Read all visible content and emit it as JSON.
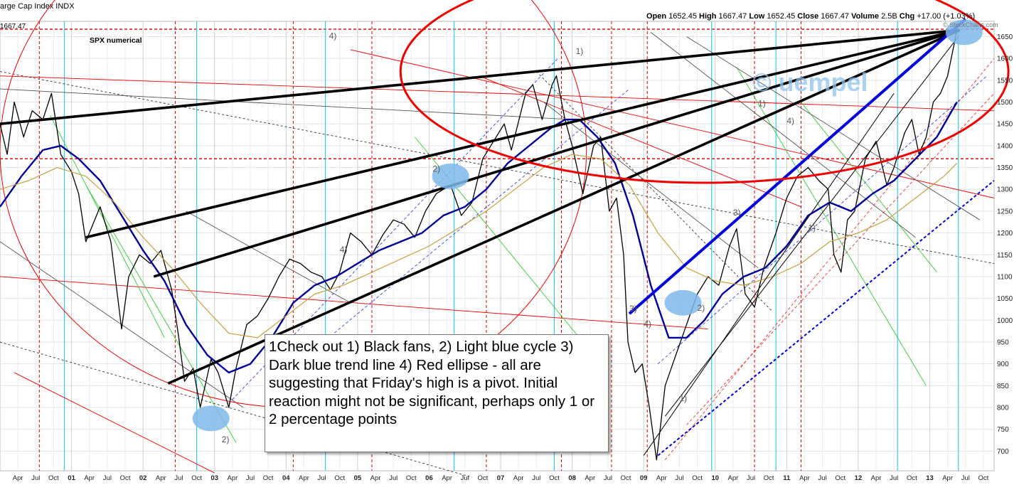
{
  "header": {
    "index_name": "arge Cap Index",
    "index_code": "INDX",
    "open_label": "Open",
    "open": "1652.45",
    "high_label": "High",
    "high": "1667.47",
    "low_label": "Low",
    "low": "1652.45",
    "close_label": "Close",
    "close": "1667.47",
    "volume_label": "Volume",
    "volume": "2.5B",
    "chg_label": "Chg",
    "chg": "+17.00 (+1.03%)",
    "watermark": "© StockCharts.com",
    "last_price_tag": "1667.47"
  },
  "labels": {
    "series_label": "SPX numerical",
    "author_watermark": "© uempel"
  },
  "annotation_text": "1Check out 1) Black fans, 2) Light blue cycle 3) Dark blue trend line 4) Red ellipse - all are suggesting that Friday's high is a pivot. Initial reaction might not be significant, perhaps only 1 or 2 percentage points",
  "colors": {
    "price": "#000000",
    "ma_long": "#000099",
    "ma_short": "#c8a040",
    "fan": "#000000",
    "trend": "#0000dd",
    "ellipse": "#ee0000",
    "cycle_line": "#33ccee",
    "cycle_blob": "#7fb8ea",
    "resistance": "#ee0000"
  },
  "chart_data": {
    "type": "line",
    "title": "",
    "x_range": [
      2000.0,
      2013.9
    ],
    "ylim": [
      655,
      1685
    ],
    "y_ticks": [
      700,
      750,
      800,
      850,
      900,
      950,
      1000,
      1050,
      1100,
      1150,
      1200,
      1250,
      1300,
      1350,
      1400,
      1450,
      1500,
      1550,
      1600,
      1650
    ],
    "x_ticks": [
      {
        "t": 2000.25,
        "label": "Apr"
      },
      {
        "t": 2000.5,
        "label": "Jul"
      },
      {
        "t": 2000.75,
        "label": "Oct"
      },
      {
        "t": 2001.0,
        "label": "01",
        "year": true
      },
      {
        "t": 2001.25,
        "label": "Apr"
      },
      {
        "t": 2001.5,
        "label": "Jul"
      },
      {
        "t": 2001.75,
        "label": "Oct"
      },
      {
        "t": 2002.0,
        "label": "02",
        "year": true
      },
      {
        "t": 2002.25,
        "label": "Apr"
      },
      {
        "t": 2002.5,
        "label": "Jul"
      },
      {
        "t": 2002.75,
        "label": "Oct"
      },
      {
        "t": 2003.0,
        "label": "03",
        "year": true
      },
      {
        "t": 2003.25,
        "label": "Apr"
      },
      {
        "t": 2003.5,
        "label": "Jul"
      },
      {
        "t": 2003.75,
        "label": "Oct"
      },
      {
        "t": 2004.0,
        "label": "04",
        "year": true
      },
      {
        "t": 2004.25,
        "label": "Apr"
      },
      {
        "t": 2004.5,
        "label": "Jul"
      },
      {
        "t": 2004.75,
        "label": "Oct"
      },
      {
        "t": 2005.0,
        "label": "05",
        "year": true
      },
      {
        "t": 2005.25,
        "label": "Apr"
      },
      {
        "t": 2005.5,
        "label": "Jul"
      },
      {
        "t": 2005.75,
        "label": "Oct"
      },
      {
        "t": 2006.0,
        "label": "06",
        "year": true
      },
      {
        "t": 2006.25,
        "label": "Apr"
      },
      {
        "t": 2006.5,
        "label": "Jul"
      },
      {
        "t": 2006.75,
        "label": "Oct"
      },
      {
        "t": 2007.0,
        "label": "07",
        "year": true
      },
      {
        "t": 2007.25,
        "label": "Apr"
      },
      {
        "t": 2007.5,
        "label": "Jul"
      },
      {
        "t": 2007.75,
        "label": "Oct"
      },
      {
        "t": 2008.0,
        "label": "08",
        "year": true
      },
      {
        "t": 2008.25,
        "label": "Apr"
      },
      {
        "t": 2008.5,
        "label": "Jul"
      },
      {
        "t": 2008.75,
        "label": "Oct"
      },
      {
        "t": 2009.0,
        "label": "09",
        "year": true
      },
      {
        "t": 2009.25,
        "label": "Apr"
      },
      {
        "t": 2009.5,
        "label": "Jul"
      },
      {
        "t": 2009.75,
        "label": "Oct"
      },
      {
        "t": 2010.0,
        "label": "10",
        "year": true
      },
      {
        "t": 2010.25,
        "label": "Apr"
      },
      {
        "t": 2010.5,
        "label": "Jul"
      },
      {
        "t": 2010.75,
        "label": "Oct"
      },
      {
        "t": 2011.0,
        "label": "11",
        "year": true
      },
      {
        "t": 2011.25,
        "label": "Apr"
      },
      {
        "t": 2011.5,
        "label": "Jul"
      },
      {
        "t": 2011.75,
        "label": "Oct"
      },
      {
        "t": 2012.0,
        "label": "12",
        "year": true
      },
      {
        "t": 2012.25,
        "label": "Apr"
      },
      {
        "t": 2012.5,
        "label": "Jul"
      },
      {
        "t": 2012.75,
        "label": "Oct"
      },
      {
        "t": 2013.0,
        "label": "13",
        "year": true
      },
      {
        "t": 2013.25,
        "label": "Apr"
      },
      {
        "t": 2013.5,
        "label": "Jul"
      },
      {
        "t": 2013.75,
        "label": "Oct"
      }
    ],
    "series": [
      {
        "key": "price",
        "points": [
          [
            2000.0,
            1450
          ],
          [
            2000.1,
            1380
          ],
          [
            2000.2,
            1500
          ],
          [
            2000.33,
            1420
          ],
          [
            2000.45,
            1480
          ],
          [
            2000.6,
            1460
          ],
          [
            2000.72,
            1520
          ],
          [
            2000.85,
            1380
          ],
          [
            2001.0,
            1340
          ],
          [
            2001.1,
            1290
          ],
          [
            2001.2,
            1180
          ],
          [
            2001.3,
            1220
          ],
          [
            2001.4,
            1260
          ],
          [
            2001.55,
            1180
          ],
          [
            2001.7,
            980
          ],
          [
            2001.8,
            1100
          ],
          [
            2001.95,
            1150
          ],
          [
            2002.1,
            1130
          ],
          [
            2002.25,
            1160
          ],
          [
            2002.4,
            1070
          ],
          [
            2002.5,
            960
          ],
          [
            2002.58,
            860
          ],
          [
            2002.7,
            890
          ],
          [
            2002.8,
            800
          ],
          [
            2002.95,
            910
          ],
          [
            2003.05,
            880
          ],
          [
            2003.2,
            800
          ],
          [
            2003.3,
            890
          ],
          [
            2003.45,
            990
          ],
          [
            2003.6,
            1010
          ],
          [
            2003.75,
            1050
          ],
          [
            2003.9,
            1100
          ],
          [
            2004.05,
            1140
          ],
          [
            2004.2,
            1130
          ],
          [
            2004.35,
            1110
          ],
          [
            2004.5,
            1100
          ],
          [
            2004.62,
            1070
          ],
          [
            2004.75,
            1110
          ],
          [
            2004.9,
            1200
          ],
          [
            2005.05,
            1180
          ],
          [
            2005.2,
            1150
          ],
          [
            2005.35,
            1195
          ],
          [
            2005.5,
            1230
          ],
          [
            2005.65,
            1220
          ],
          [
            2005.8,
            1190
          ],
          [
            2005.95,
            1250
          ],
          [
            2006.1,
            1290
          ],
          [
            2006.3,
            1310
          ],
          [
            2006.45,
            1240
          ],
          [
            2006.6,
            1270
          ],
          [
            2006.75,
            1370
          ],
          [
            2006.9,
            1410
          ],
          [
            2007.05,
            1450
          ],
          [
            2007.15,
            1390
          ],
          [
            2007.35,
            1520
          ],
          [
            2007.45,
            1540
          ],
          [
            2007.58,
            1460
          ],
          [
            2007.72,
            1540
          ],
          [
            2007.78,
            1560
          ],
          [
            2007.9,
            1460
          ],
          [
            2008.0,
            1400
          ],
          [
            2008.15,
            1290
          ],
          [
            2008.3,
            1400
          ],
          [
            2008.4,
            1420
          ],
          [
            2008.52,
            1250
          ],
          [
            2008.62,
            1280
          ],
          [
            2008.72,
            1150
          ],
          [
            2008.78,
            950
          ],
          [
            2008.88,
            880
          ],
          [
            2008.98,
            900
          ],
          [
            2009.08,
            800
          ],
          [
            2009.18,
            680
          ],
          [
            2009.3,
            850
          ],
          [
            2009.45,
            920
          ],
          [
            2009.6,
            990
          ],
          [
            2009.75,
            1060
          ],
          [
            2009.9,
            1100
          ],
          [
            2010.05,
            1080
          ],
          [
            2010.2,
            1170
          ],
          [
            2010.3,
            1210
          ],
          [
            2010.42,
            1060
          ],
          [
            2010.55,
            1030
          ],
          [
            2010.68,
            1120
          ],
          [
            2010.85,
            1200
          ],
          [
            2011.0,
            1280
          ],
          [
            2011.15,
            1330
          ],
          [
            2011.3,
            1350
          ],
          [
            2011.45,
            1320
          ],
          [
            2011.58,
            1300
          ],
          [
            2011.66,
            1150
          ],
          [
            2011.76,
            1110
          ],
          [
            2011.85,
            1230
          ],
          [
            2011.95,
            1250
          ],
          [
            2012.1,
            1370
          ],
          [
            2012.25,
            1410
          ],
          [
            2012.4,
            1310
          ],
          [
            2012.5,
            1350
          ],
          [
            2012.65,
            1430
          ],
          [
            2012.75,
            1460
          ],
          [
            2012.85,
            1380
          ],
          [
            2012.95,
            1420
          ],
          [
            2013.05,
            1500
          ],
          [
            2013.15,
            1520
          ],
          [
            2013.25,
            1560
          ],
          [
            2013.35,
            1640
          ],
          [
            2013.38,
            1667
          ]
        ]
      },
      {
        "key": "ma_long",
        "points": [
          [
            2000.0,
            1260
          ],
          [
            2000.3,
            1330
          ],
          [
            2000.6,
            1390
          ],
          [
            2000.85,
            1400
          ],
          [
            2001.1,
            1370
          ],
          [
            2001.4,
            1320
          ],
          [
            2001.7,
            1240
          ],
          [
            2002.0,
            1160
          ],
          [
            2002.3,
            1090
          ],
          [
            2002.6,
            990
          ],
          [
            2002.9,
            920
          ],
          [
            2003.2,
            880
          ],
          [
            2003.5,
            900
          ],
          [
            2003.8,
            960
          ],
          [
            2004.1,
            1040
          ],
          [
            2004.4,
            1080
          ],
          [
            2004.7,
            1100
          ],
          [
            2005.0,
            1130
          ],
          [
            2005.3,
            1160
          ],
          [
            2005.6,
            1180
          ],
          [
            2005.9,
            1200
          ],
          [
            2006.2,
            1240
          ],
          [
            2006.5,
            1260
          ],
          [
            2006.8,
            1300
          ],
          [
            2007.1,
            1360
          ],
          [
            2007.4,
            1400
          ],
          [
            2007.7,
            1440
          ],
          [
            2007.9,
            1460
          ],
          [
            2008.1,
            1460
          ],
          [
            2008.35,
            1420
          ],
          [
            2008.6,
            1360
          ],
          [
            2008.85,
            1240
          ],
          [
            2009.1,
            1080
          ],
          [
            2009.35,
            960
          ],
          [
            2009.6,
            960
          ],
          [
            2009.85,
            1000
          ],
          [
            2010.1,
            1060
          ],
          [
            2010.4,
            1100
          ],
          [
            2010.7,
            1120
          ],
          [
            2011.0,
            1170
          ],
          [
            2011.3,
            1240
          ],
          [
            2011.6,
            1270
          ],
          [
            2011.9,
            1250
          ],
          [
            2012.2,
            1290
          ],
          [
            2012.5,
            1320
          ],
          [
            2012.8,
            1370
          ],
          [
            2013.1,
            1420
          ],
          [
            2013.38,
            1500
          ]
        ]
      },
      {
        "key": "ma_short",
        "points": [
          [
            2000.0,
            1300
          ],
          [
            2000.4,
            1320
          ],
          [
            2000.8,
            1350
          ],
          [
            2001.2,
            1330
          ],
          [
            2001.6,
            1270
          ],
          [
            2002.0,
            1190
          ],
          [
            2002.4,
            1120
          ],
          [
            2002.8,
            1040
          ],
          [
            2003.2,
            970
          ],
          [
            2003.6,
            960
          ],
          [
            2004.0,
            1010
          ],
          [
            2004.4,
            1060
          ],
          [
            2004.8,
            1080
          ],
          [
            2005.2,
            1110
          ],
          [
            2005.6,
            1140
          ],
          [
            2006.0,
            1170
          ],
          [
            2006.4,
            1210
          ],
          [
            2006.8,
            1250
          ],
          [
            2007.2,
            1300
          ],
          [
            2007.6,
            1350
          ],
          [
            2008.0,
            1380
          ],
          [
            2008.4,
            1370
          ],
          [
            2008.8,
            1310
          ],
          [
            2009.2,
            1200
          ],
          [
            2009.6,
            1120
          ],
          [
            2010.0,
            1090
          ],
          [
            2010.4,
            1080
          ],
          [
            2010.8,
            1100
          ],
          [
            2011.2,
            1130
          ],
          [
            2011.6,
            1180
          ],
          [
            2012.0,
            1200
          ],
          [
            2012.4,
            1230
          ],
          [
            2012.8,
            1280
          ],
          [
            2013.2,
            1330
          ],
          [
            2013.38,
            1360
          ]
        ]
      }
    ],
    "fans": [
      {
        "from": [
          2000.0,
          1450
        ],
        "to": [
          2013.42,
          1665
        ]
      },
      {
        "from": [
          2001.2,
          1190
        ],
        "to": [
          2013.42,
          1665
        ]
      },
      {
        "from": [
          2002.15,
          1100
        ],
        "to": [
          2013.42,
          1665
        ]
      },
      {
        "from": [
          2002.35,
          855
        ],
        "to": [
          2013.42,
          1665
        ]
      }
    ],
    "trend_line": {
      "from": [
        2008.8,
        1015
      ],
      "to": [
        2013.5,
        1690
      ]
    },
    "channel_line": {
      "from": [
        2009.2,
        690
      ],
      "to": [
        2013.9,
        1320
      ]
    },
    "red_ellipse": {
      "cx": 2009.85,
      "cy": 1570,
      "rx": 4.25,
      "ry": 255
    },
    "cycle_lines_t": [
      2000.9,
      2002.75,
      2004.55,
      2006.35,
      2007.75,
      2009.95,
      2010.85,
      2012.55,
      2013.4
    ],
    "dashed_verticals_t": [
      2000.55,
      2002.45,
      2004.1,
      2005.2,
      2006.8,
      2007.85,
      2008.55,
      2009.05,
      2010.55,
      2011.2
    ],
    "cycle_blobs": [
      {
        "t": 2002.95,
        "v": 775
      },
      {
        "t": 2006.3,
        "v": 1330
      },
      {
        "t": 2009.55,
        "v": 1040
      },
      {
        "t": 2013.48,
        "v": 1660
      }
    ],
    "dashed_levels": [
      1667,
      1370
    ],
    "wave_labels": [
      {
        "text": "4)",
        "t": 2004.6,
        "v": 1645
      },
      {
        "text": "1)",
        "t": 2008.05,
        "v": 1610
      },
      {
        "text": "1)",
        "t": 2010.6,
        "v": 1490
      },
      {
        "text": "4)",
        "t": 2011.0,
        "v": 1450
      },
      {
        "text": "2)",
        "t": 2006.05,
        "v": 1340
      },
      {
        "text": "3)",
        "t": 2010.25,
        "v": 1240
      },
      {
        "text": "1)",
        "t": 2011.3,
        "v": 1205
      },
      {
        "text": "4)",
        "t": 2004.75,
        "v": 1155
      },
      {
        "text": "3)",
        "t": 2008.8,
        "v": 1020
      },
      {
        "text": "2)",
        "t": 2009.75,
        "v": 1022
      },
      {
        "text": "4)",
        "t": 2009.0,
        "v": 985
      },
      {
        "text": "1)",
        "t": 2009.5,
        "v": 815
      },
      {
        "text": "2)",
        "t": 2003.1,
        "v": 720
      }
    ]
  }
}
